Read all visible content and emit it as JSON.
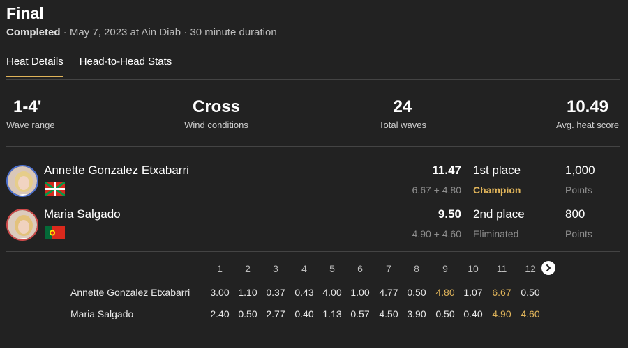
{
  "header": {
    "title": "Final",
    "status": "Completed",
    "details": " · May 7, 2023 at Ain Diab · 30 minute duration"
  },
  "tabs": [
    {
      "label": "Heat Details",
      "active": true
    },
    {
      "label": "Head-to-Head Stats",
      "active": false
    }
  ],
  "stats": [
    {
      "value": "1-4'",
      "label": "Wave range"
    },
    {
      "value": "Cross",
      "label": "Wind conditions"
    },
    {
      "value": "24",
      "label": "Total waves"
    },
    {
      "value": "10.49",
      "label": "Avg. heat score"
    }
  ],
  "athletes": [
    {
      "name": "Annette Gonzalez Etxabarri",
      "score": "11.47",
      "waves": "6.67 + 4.80",
      "place": "1st place",
      "result": "Champion",
      "points": "1,000",
      "points_label": "Points"
    },
    {
      "name": "Maria Salgado",
      "score": "9.50",
      "waves": "4.90 + 4.60",
      "place": "2nd place",
      "result": "Eliminated",
      "points": "800",
      "points_label": "Points"
    }
  ],
  "wave_table": {
    "headers": [
      "1",
      "2",
      "3",
      "4",
      "5",
      "6",
      "7",
      "8",
      "9",
      "10",
      "11",
      "12"
    ],
    "rows": [
      {
        "name": "Annette Gonzalez Etxabarri",
        "values": [
          "3.00",
          "1.10",
          "0.37",
          "0.43",
          "4.00",
          "1.00",
          "4.77",
          "0.50",
          "4.80",
          "1.07",
          "6.67",
          "0.50"
        ],
        "highlight": [
          8,
          10
        ]
      },
      {
        "name": "Maria Salgado",
        "values": [
          "2.40",
          "0.50",
          "2.77",
          "0.40",
          "1.13",
          "0.57",
          "4.50",
          "3.90",
          "0.50",
          "0.40",
          "4.90",
          "4.60"
        ],
        "highlight": [
          10,
          11
        ]
      }
    ]
  },
  "colors": {
    "accent": "#e0b45a",
    "background": "#222222"
  }
}
